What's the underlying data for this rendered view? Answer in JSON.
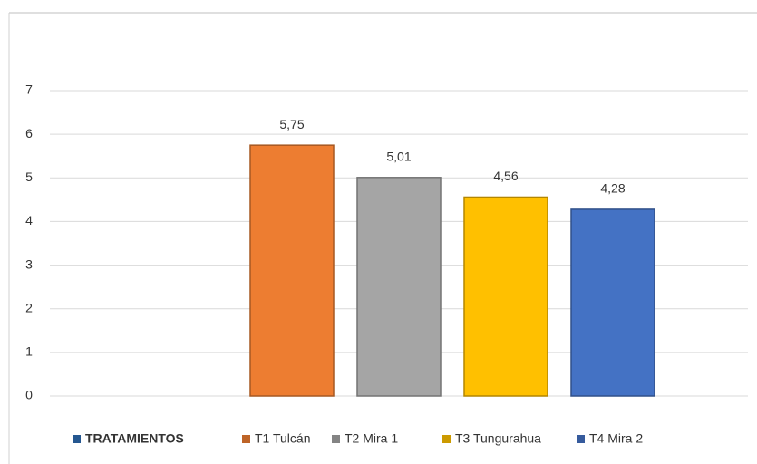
{
  "chart_data": {
    "type": "bar",
    "series": [
      {
        "name": "TRATAMIENTOS",
        "color": "#2e6db4",
        "values": [
          null
        ]
      },
      {
        "name": "T1 Tulcán",
        "color": "#ed7d31",
        "values": [
          5.75
        ],
        "value_labels": [
          "5,75"
        ]
      },
      {
        "name": "T2 Mira 1",
        "color": "#a5a5a5",
        "values": [
          5.01
        ],
        "value_labels": [
          "5,01"
        ]
      },
      {
        "name": "T3 Tungurahua",
        "color": "#ffc000",
        "values": [
          4.56
        ],
        "value_labels": [
          "4,56"
        ]
      },
      {
        "name": "T4 Mira 2",
        "color": "#4472c4",
        "values": [
          4.28
        ],
        "value_labels": [
          "4,28"
        ]
      }
    ],
    "ylim": [
      0,
      7
    ],
    "yticks": [
      0,
      1,
      2,
      3,
      4,
      5,
      6,
      7
    ],
    "grid": true,
    "legend": "bottom"
  }
}
